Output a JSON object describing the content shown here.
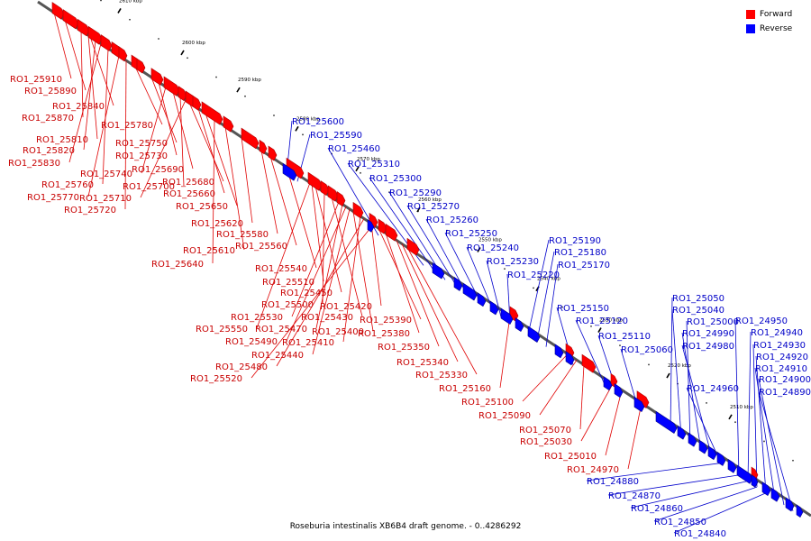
{
  "caption": "Roseburia intestinalis XB6B4 draft genome. - 0..4286292",
  "legend": [
    {
      "label": "Forward",
      "color": "#ff0000"
    },
    {
      "label": "Reverse",
      "color": "#0000ff"
    }
  ],
  "axis_ticks": [
    "2610 kbp",
    "2600 kbp",
    "2590 kbp",
    "2580 kbp",
    "2570 kbp",
    "2560 kbp",
    "2550 kbp",
    "2540 kbp",
    "2530 kbp",
    "2520 kbp",
    "2510 kbp"
  ],
  "forward_labels": [
    "RO1_25910",
    "RO1_25890",
    "RO1_25840",
    "RO1_25870",
    "RO1_25780",
    "RO1_25810",
    "RO1_25750",
    "RO1_25820",
    "RO1_25730",
    "RO1_25830",
    "RO1_25740",
    "RO1_25690",
    "RO1_25760",
    "RO1_25700",
    "RO1_25680",
    "RO1_25770",
    "RO1_25710",
    "RO1_25660",
    "RO1_25720",
    "RO1_25650",
    "RO1_25620",
    "RO1_25580",
    "RO1_25610",
    "RO1_25560",
    "RO1_25640",
    "RO1_25540",
    "RO1_25510",
    "RO1_25450",
    "RO1_25500",
    "RO1_25420",
    "RO1_25430",
    "RO1_25530",
    "RO1_25390",
    "RO1_25550",
    "RO1_25470",
    "RO1_25400",
    "RO1_25380",
    "RO1_25490",
    "RO1_25410",
    "RO1_25350",
    "RO1_25440",
    "RO1_25340",
    "RO1_25480",
    "RO1_25330",
    "RO1_25520",
    "RO1_25160",
    "RO1_25100",
    "RO1_25090",
    "RO1_25070",
    "RO1_25030",
    "RO1_25010",
    "RO1_24970"
  ],
  "reverse_labels": [
    "RO1_25600",
    "RO1_25590",
    "RO1_25460",
    "RO1_25310",
    "RO1_25300",
    "RO1_25290",
    "RO1_25270",
    "RO1_25260",
    "RO1_25250",
    "RO1_25240",
    "RO1_25190",
    "RO1_25180",
    "RO1_25230",
    "RO1_25170",
    "RO1_25220",
    "RO1_25150",
    "RO1_25120",
    "RO1_25110",
    "RO1_25060",
    "RO1_25050",
    "RO1_25040",
    "RO1_25000",
    "RO1_24990",
    "RO1_24980",
    "RO1_24950",
    "RO1_24940",
    "RO1_24930",
    "RO1_24920",
    "RO1_24910",
    "RO1_24900",
    "RO1_24890",
    "RO1_24960",
    "RO1_24880",
    "RO1_24870",
    "RO1_24860",
    "RO1_24850",
    "RO1_24840"
  ]
}
